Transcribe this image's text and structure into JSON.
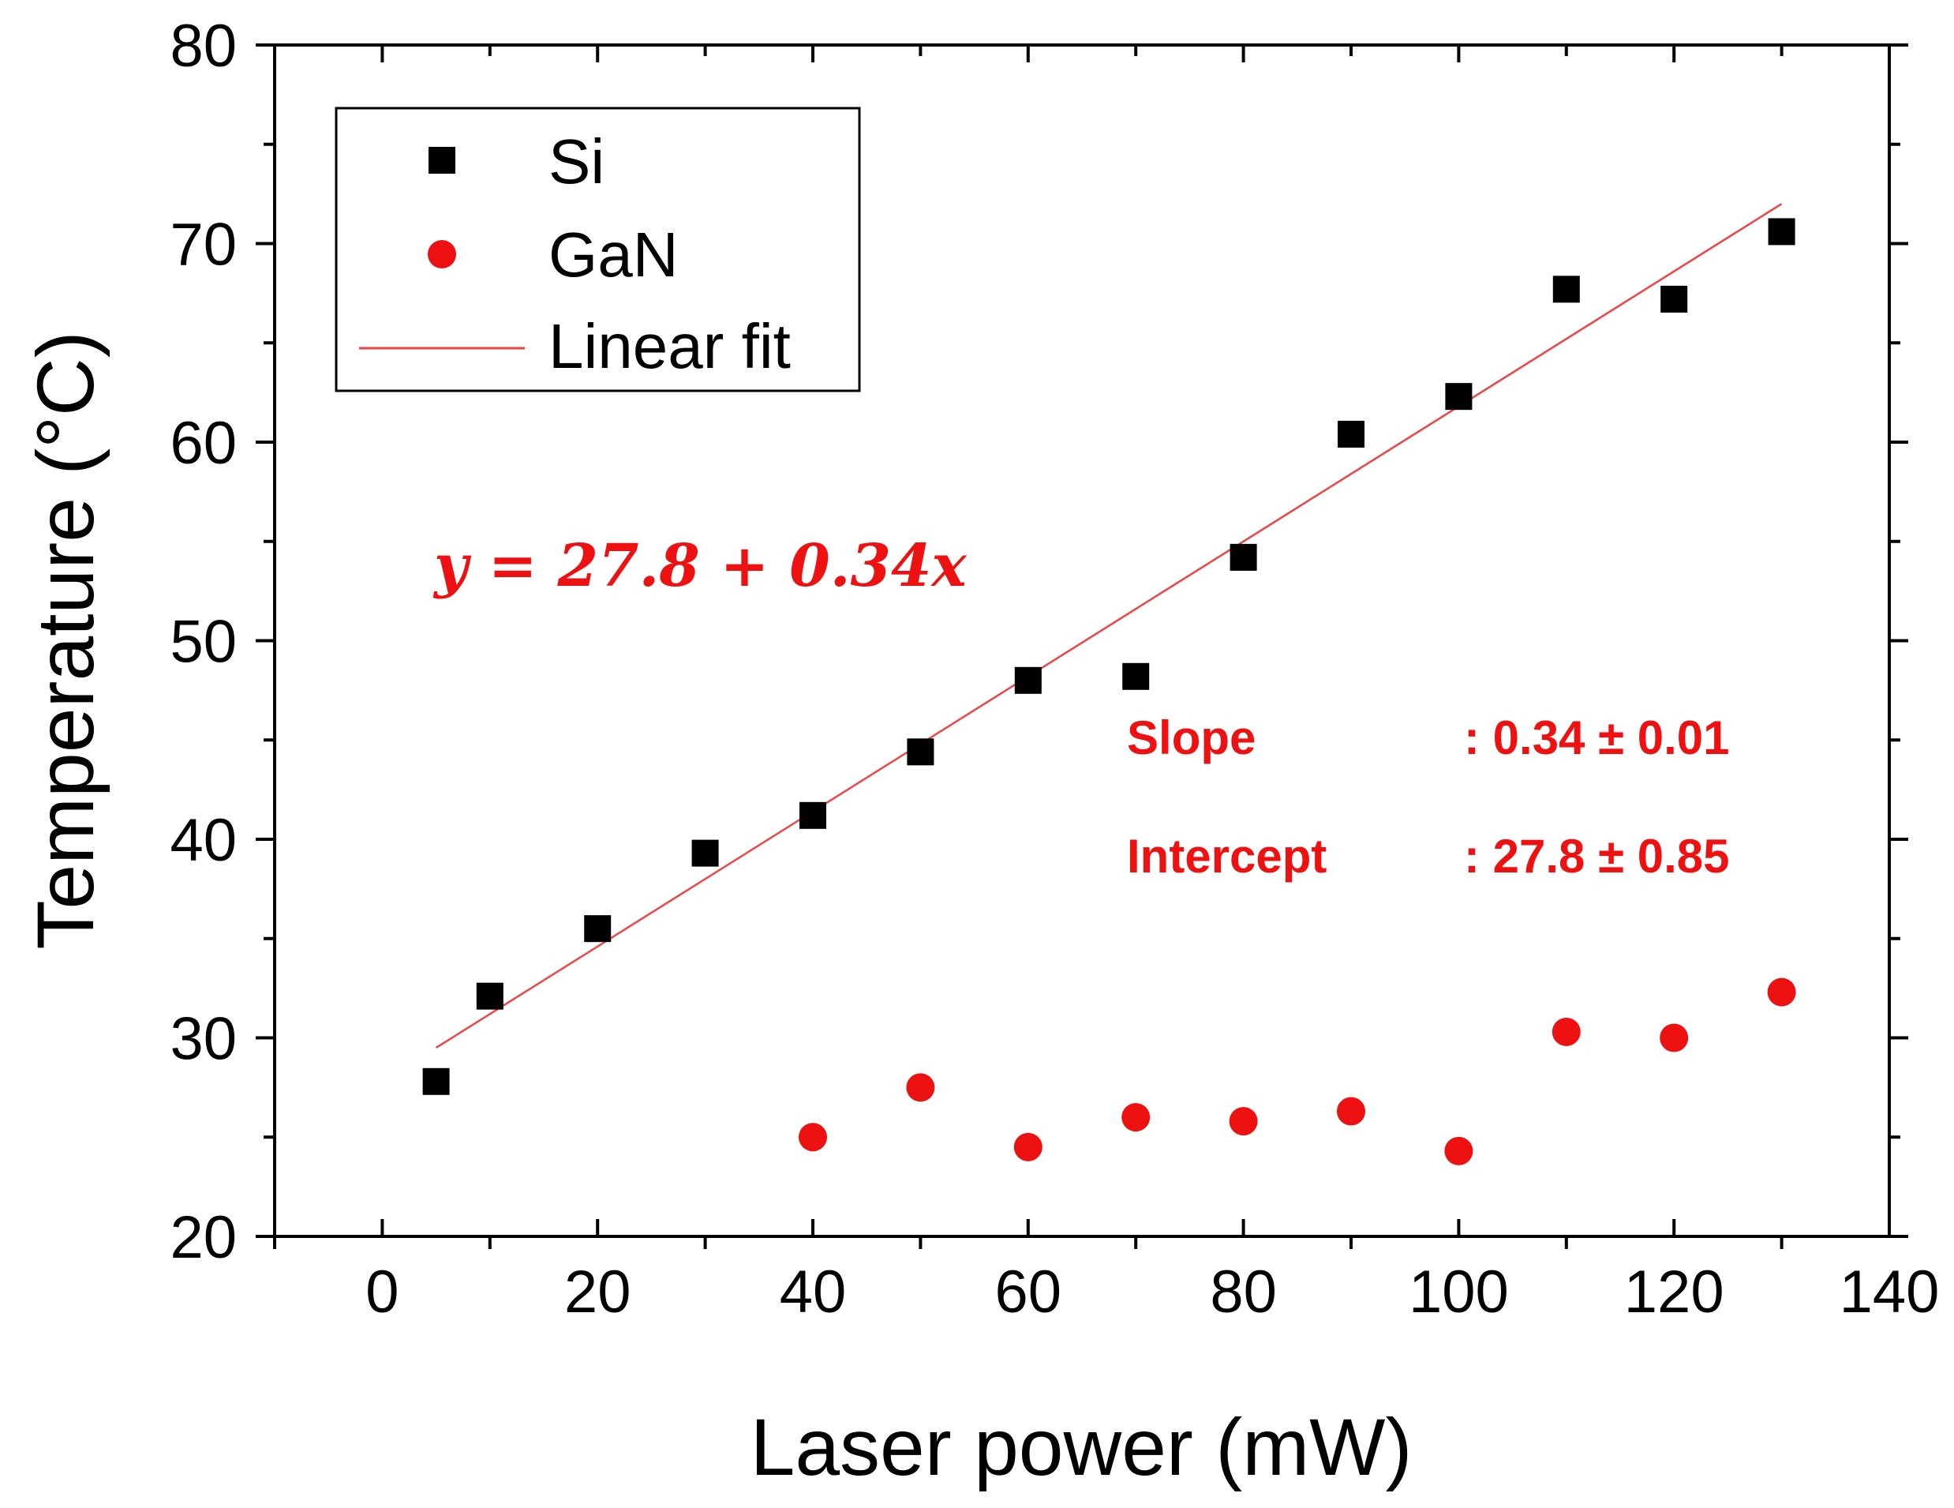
{
  "chart_data": {
    "type": "scatter",
    "xlabel": "Laser power (mW)",
    "ylabel": "Temperature (°C)",
    "xlim": [
      -10,
      140
    ],
    "ylim": [
      20,
      80
    ],
    "x_ticks": [
      0,
      20,
      40,
      60,
      80,
      100,
      120,
      140
    ],
    "y_ticks": [
      20,
      30,
      40,
      50,
      60,
      70,
      80
    ],
    "x_tick_labels": [
      "0",
      "20",
      "40",
      "60",
      "80",
      "100",
      "120",
      "140"
    ],
    "y_tick_labels": [
      "20",
      "30",
      "40",
      "50",
      "60",
      "70",
      "80"
    ],
    "legend_position": "top-left",
    "series": [
      {
        "name": "Si",
        "marker": "square",
        "color": "#000000",
        "x": [
          5,
          10,
          20,
          30,
          40,
          50,
          60,
          70,
          80,
          90,
          100,
          110,
          120,
          130
        ],
        "y": [
          27.8,
          32.1,
          35.5,
          39.3,
          41.2,
          44.4,
          48.0,
          48.2,
          54.2,
          60.4,
          62.3,
          67.7,
          67.2,
          70.6
        ]
      },
      {
        "name": "GaN",
        "marker": "circle",
        "color": "#ee1111",
        "x": [
          40,
          50,
          60,
          70,
          80,
          90,
          100,
          110,
          120,
          130
        ],
        "y": [
          25.0,
          27.5,
          24.5,
          26.0,
          25.8,
          26.3,
          24.3,
          30.3,
          30.0,
          32.3
        ]
      }
    ],
    "fit": {
      "name": "Linear fit",
      "color": "#ee4444",
      "x_range": [
        5,
        130
      ],
      "intercept": 27.8,
      "slope": 0.34
    },
    "annotations": {
      "equation": "y = 27.8 + 0.34x",
      "slope_label": "Slope",
      "slope_value": ": 0.34 ± 0.01",
      "intercept_label": "Intercept",
      "intercept_value": ": 27.8 ± 0.85"
    }
  }
}
